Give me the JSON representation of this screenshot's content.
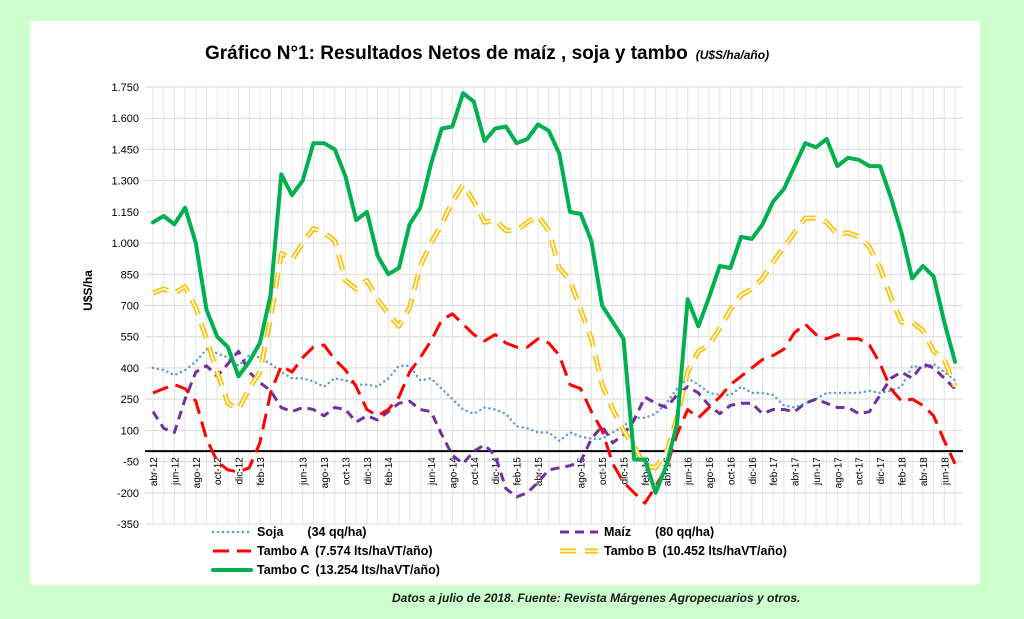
{
  "page": {
    "background": "#ccffcc",
    "footnote": "Datos a julio de 2018. Fuente: Revista Márgenes Agropecuarios y otros."
  },
  "chart_data": {
    "type": "line",
    "title": "Gráfico N°1: Resultados Netos de maíz , soja y tambo",
    "title_unit": "(U$S/ha/año)",
    "ylabel": "U$S/ha",
    "xlabel": "",
    "ylim": [
      -350,
      1750
    ],
    "yticks": [
      -350,
      -200,
      -50,
      100,
      250,
      400,
      550,
      700,
      850,
      1000,
      1150,
      1300,
      1450,
      1600,
      1750
    ],
    "ytick_labels": [
      "-350",
      "-200",
      "-50",
      "100",
      "250",
      "400",
      "550",
      "700",
      "850",
      "1.000",
      "1.150",
      "1.300",
      "1.450",
      "1.600",
      "1.750"
    ],
    "zero_line": 0,
    "grid": true,
    "legend_position": "bottom",
    "x": [
      "abr-12",
      "may-12",
      "jun-12",
      "jul-12",
      "ago-12",
      "sep-12",
      "oct-12",
      "nov-12",
      "dic-12",
      "ene-13",
      "feb-13",
      "mar-13",
      "abr-13",
      "may-13",
      "jun-13",
      "jul-13",
      "ago-13",
      "sep-13",
      "oct-13",
      "nov-13",
      "dic-13",
      "ene-14",
      "feb-14",
      "mar-14",
      "abr-14",
      "may-14",
      "jun-14",
      "jul-14",
      "ago-14",
      "sep-14",
      "oct-14",
      "nov-14",
      "dic-14",
      "ene-15",
      "feb-15",
      "mar-15",
      "abr-15",
      "may-15",
      "jun-15",
      "jul-15",
      "ago-15",
      "sep-15",
      "oct-15",
      "nov-15",
      "dic-15",
      "ene-16",
      "feb-16",
      "mar-16",
      "abr-16",
      "may-16",
      "jun-16",
      "jul-16",
      "ago-16",
      "sep-16",
      "oct-16",
      "nov-16",
      "dic-16",
      "ene-17",
      "feb-17",
      "mar-17",
      "abr-17",
      "may-17",
      "jun-17",
      "jul-17",
      "ago-17",
      "sep-17",
      "oct-17",
      "nov-17",
      "dic-17",
      "ene-18",
      "feb-18",
      "mar-18",
      "abr-18",
      "may-18",
      "jun-18",
      "jul-18"
    ],
    "xtick_labels": [
      "abr-12",
      "jun-12",
      "ago-12",
      "oct-12",
      "dic-12",
      "feb-13",
      "jun-13",
      "ago-13",
      "oct-13",
      "dic-13",
      "feb-14",
      "jun-14",
      "ago-14",
      "oct-14",
      "dic-14",
      "feb-15",
      "abr-15",
      "ago-15",
      "oct-15",
      "dic-15",
      "feb-16",
      "abr-16",
      "jun-16",
      "ago-16",
      "oct-16",
      "dic-16",
      "feb-17",
      "abr-17",
      "jun-17",
      "ago-17",
      "oct-17",
      "dic-17",
      "feb-18",
      "abr-18",
      "jun-18"
    ],
    "series": [
      {
        "name": "Soja",
        "legend_note": "(34 qq/ha)",
        "color": "#5b9bd5",
        "style": "dotted",
        "values": [
          400,
          390,
          365,
          390,
          430,
          490,
          470,
          450,
          410,
          460,
          450,
          420,
          380,
          350,
          350,
          335,
          310,
          350,
          340,
          320,
          320,
          310,
          350,
          410,
          410,
          340,
          350,
          300,
          250,
          200,
          180,
          210,
          200,
          180,
          120,
          110,
          90,
          90,
          50,
          90,
          70,
          60,
          60,
          90,
          120,
          160,
          160,
          180,
          230,
          300,
          350,
          320,
          280,
          270,
          270,
          310,
          280,
          280,
          270,
          220,
          210,
          230,
          250,
          280,
          280,
          280,
          280,
          290,
          280,
          290,
          310,
          410,
          400,
          420,
          380,
          340
        ]
      },
      {
        "name": "Maíz",
        "legend_note": "(80 qq/ha)",
        "color": "#7030a0",
        "style": "dash",
        "values": [
          190,
          110,
          90,
          250,
          380,
          410,
          360,
          420,
          480,
          380,
          330,
          290,
          210,
          190,
          210,
          200,
          170,
          210,
          200,
          140,
          170,
          150,
          190,
          230,
          240,
          200,
          190,
          80,
          -20,
          -60,
          0,
          30,
          -20,
          -180,
          -220,
          -200,
          -150,
          -90,
          -80,
          -70,
          -50,
          60,
          120,
          40,
          80,
          150,
          260,
          230,
          210,
          270,
          310,
          280,
          220,
          180,
          220,
          230,
          230,
          180,
          200,
          200,
          190,
          230,
          250,
          230,
          210,
          210,
          180,
          190,
          270,
          350,
          380,
          350,
          420,
          400,
          350,
          300
        ]
      },
      {
        "name": "Tambo  A",
        "legend_note": "(7.574 lts/haVT/año)",
        "color": "#ff0000",
        "style": "long-dash",
        "values": [
          280,
          300,
          320,
          300,
          240,
          60,
          -50,
          -90,
          -100,
          -80,
          40,
          280,
          410,
          380,
          450,
          500,
          510,
          440,
          390,
          310,
          200,
          170,
          200,
          260,
          380,
          450,
          530,
          630,
          660,
          610,
          560,
          530,
          560,
          520,
          500,
          500,
          540,
          520,
          460,
          320,
          300,
          190,
          100,
          -60,
          -150,
          -200,
          -250,
          -170,
          -80,
          80,
          200,
          160,
          210,
          260,
          320,
          360,
          400,
          440,
          460,
          490,
          570,
          610,
          560,
          540,
          560,
          540,
          540,
          510,
          420,
          300,
          240,
          250,
          220,
          170,
          50,
          -60
        ]
      },
      {
        "name": "Tambo B",
        "legend_note": "(10.452 lts/haVT/año)",
        "color": "#ffc000",
        "style": "double-dash",
        "values": [
          760,
          780,
          760,
          790,
          690,
          540,
          380,
          230,
          200,
          300,
          380,
          640,
          950,
          920,
          1000,
          1070,
          1050,
          1010,
          820,
          780,
          820,
          730,
          660,
          600,
          690,
          890,
          1000,
          1090,
          1200,
          1280,
          1200,
          1100,
          1110,
          1060,
          1060,
          1100,
          1130,
          1060,
          880,
          820,
          680,
          540,
          320,
          200,
          100,
          20,
          -70,
          -80,
          -10,
          160,
          380,
          480,
          510,
          590,
          680,
          750,
          780,
          830,
          910,
          980,
          1050,
          1120,
          1120,
          1100,
          1040,
          1050,
          1030,
          980,
          880,
          740,
          620,
          620,
          580,
          480,
          440,
          310
        ]
      },
      {
        "name": "Tambo C",
        "legend_note": "(13.254 lts/haVT/año)",
        "color": "#00b050",
        "style": "solid",
        "values": [
          1100,
          1130,
          1090,
          1170,
          1000,
          680,
          550,
          500,
          360,
          430,
          520,
          750,
          1330,
          1230,
          1300,
          1480,
          1480,
          1450,
          1320,
          1110,
          1150,
          940,
          850,
          880,
          1090,
          1170,
          1380,
          1550,
          1560,
          1720,
          1680,
          1490,
          1550,
          1560,
          1480,
          1500,
          1570,
          1540,
          1430,
          1150,
          1140,
          1010,
          700,
          620,
          540,
          -40,
          -40,
          -200,
          -70,
          130,
          730,
          600,
          740,
          890,
          880,
          1030,
          1020,
          1090,
          1200,
          1260,
          1370,
          1480,
          1460,
          1500,
          1370,
          1410,
          1400,
          1370,
          1370,
          1220,
          1050,
          830,
          890,
          840,
          620,
          430
        ]
      }
    ]
  }
}
